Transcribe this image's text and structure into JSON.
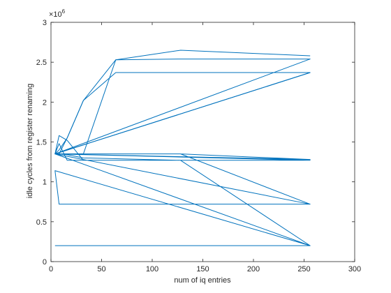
{
  "chart_data": {
    "type": "line",
    "xlabel": "num of iq entries",
    "ylabel": "idle cycles from register renaming",
    "y_exponent_label": "×10",
    "y_exponent_power": "6",
    "xlim": [
      0,
      300
    ],
    "ylim": [
      0,
      3000000
    ],
    "x_ticks": [
      0,
      50,
      100,
      150,
      200,
      250,
      300
    ],
    "y_ticks": [
      0,
      500000,
      1000000,
      1500000,
      2000000,
      2500000,
      3000000
    ],
    "x_tick_labels": [
      "0",
      "50",
      "100",
      "150",
      "200",
      "250",
      "300"
    ],
    "y_tick_labels": [
      "0",
      "0.5",
      "1",
      "1.5",
      "2",
      "2.5",
      "3"
    ],
    "grid": false,
    "series_color": "#0072BD",
    "series": [
      {
        "x": [
          4,
          8,
          16,
          32,
          64,
          128,
          256,
          4,
          8,
          16,
          32,
          64,
          128,
          256,
          4,
          8,
          16,
          32,
          64,
          128,
          256,
          4,
          8,
          16,
          32,
          64,
          128,
          256,
          4,
          8,
          16,
          32,
          64,
          128,
          256,
          4,
          8,
          16,
          32,
          64,
          128,
          256,
          4,
          8,
          16,
          32,
          64,
          128,
          256,
          4,
          8,
          16,
          32,
          64,
          128,
          256
        ],
        "y": [
          200000,
          200000,
          200000,
          200000,
          200000,
          200000,
          200000,
          1140000,
          720000,
          720000,
          720000,
          720000,
          720000,
          720000,
          1350000,
          1350000,
          1350000,
          1350000,
          1350000,
          1350000,
          1280000,
          1350000,
          1350000,
          1340000,
          1300000,
          1290000,
          1270000,
          1270000,
          1350000,
          1580000,
          1520000,
          1270000,
          1270000,
          1270000,
          1270000,
          1350000,
          1480000,
          1270000,
          1270000,
          1270000,
          1270000,
          200000,
          1350000,
          1350000,
          1350000,
          1350000,
          1350000,
          1350000,
          720000,
          1350000,
          1350000,
          1550000,
          2020000,
          2530000,
          2650000,
          2580000
        ]
      },
      {
        "x": [
          4,
          8,
          16,
          32,
          64,
          128,
          256,
          4,
          8,
          16,
          32,
          64,
          128,
          256
        ],
        "y": [
          1350000,
          1400000,
          1550000,
          2020000,
          2370000,
          2370000,
          2370000,
          1350000,
          1350000,
          1350000,
          1350000,
          2530000,
          2540000,
          2540000
        ]
      },
      {
        "x": [
          4,
          256,
          4,
          256
        ],
        "y": [
          1350000,
          2540000,
          1350000,
          2370000
        ]
      }
    ]
  }
}
